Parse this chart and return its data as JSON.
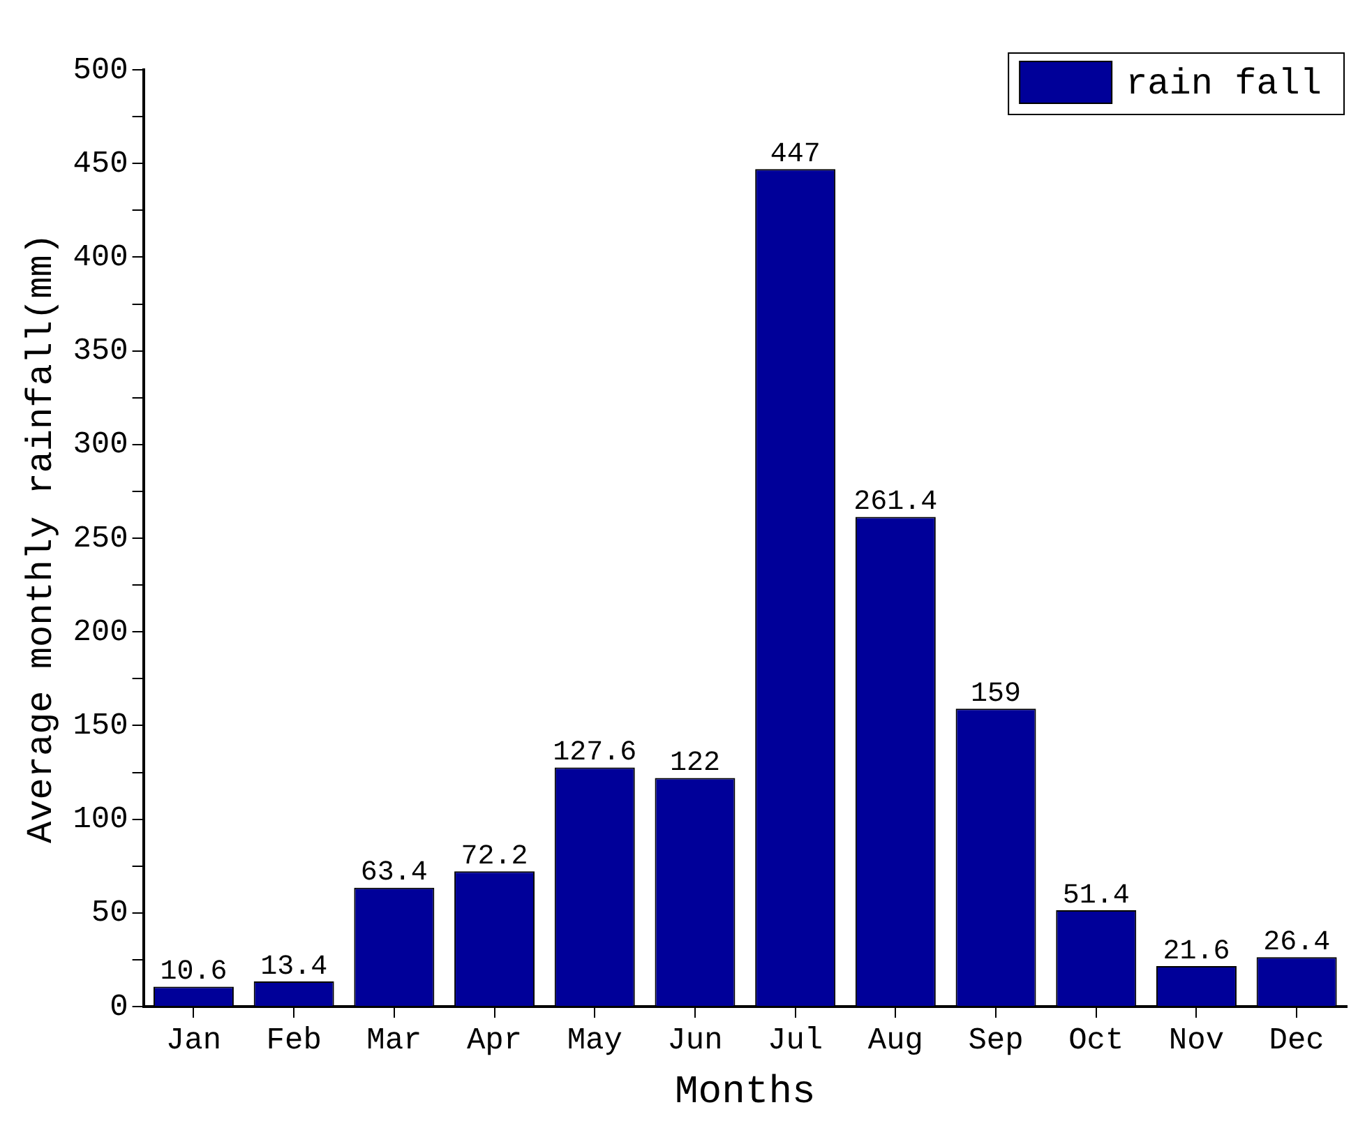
{
  "chart_data": {
    "type": "bar",
    "xlabel": "Months",
    "ylabel": "Average monthly rainfall(mm)",
    "categories": [
      "Jan",
      "Feb",
      "Mar",
      "Apr",
      "May",
      "Jun",
      "Jul",
      "Aug",
      "Sep",
      "Oct",
      "Nov",
      "Dec"
    ],
    "series": [
      {
        "name": "rain fall",
        "color": "#000099",
        "values": [
          10.6,
          13.4,
          63.4,
          72.2,
          127.6,
          122,
          447,
          261.4,
          159,
          51.4,
          21.6,
          26.4
        ]
      }
    ],
    "ylim": [
      0,
      500
    ],
    "yticks": [
      0,
      {
        "value": 25,
        "label": null
      },
      50,
      {
        "value": 75,
        "label": null
      },
      100,
      {
        "value": 125,
        "label": null
      },
      150,
      {
        "value": 175,
        "label": null
      },
      200,
      {
        "value": 225,
        "label": null
      },
      250,
      {
        "value": 275,
        "label": null
      },
      300,
      {
        "value": 325,
        "label": null
      },
      350,
      {
        "value": 375,
        "label": null
      },
      400,
      {
        "value": 425,
        "label": null
      },
      450,
      {
        "value": 475,
        "label": null
      },
      500
    ],
    "grid": false,
    "legend": "top right",
    "data_labels": true
  }
}
